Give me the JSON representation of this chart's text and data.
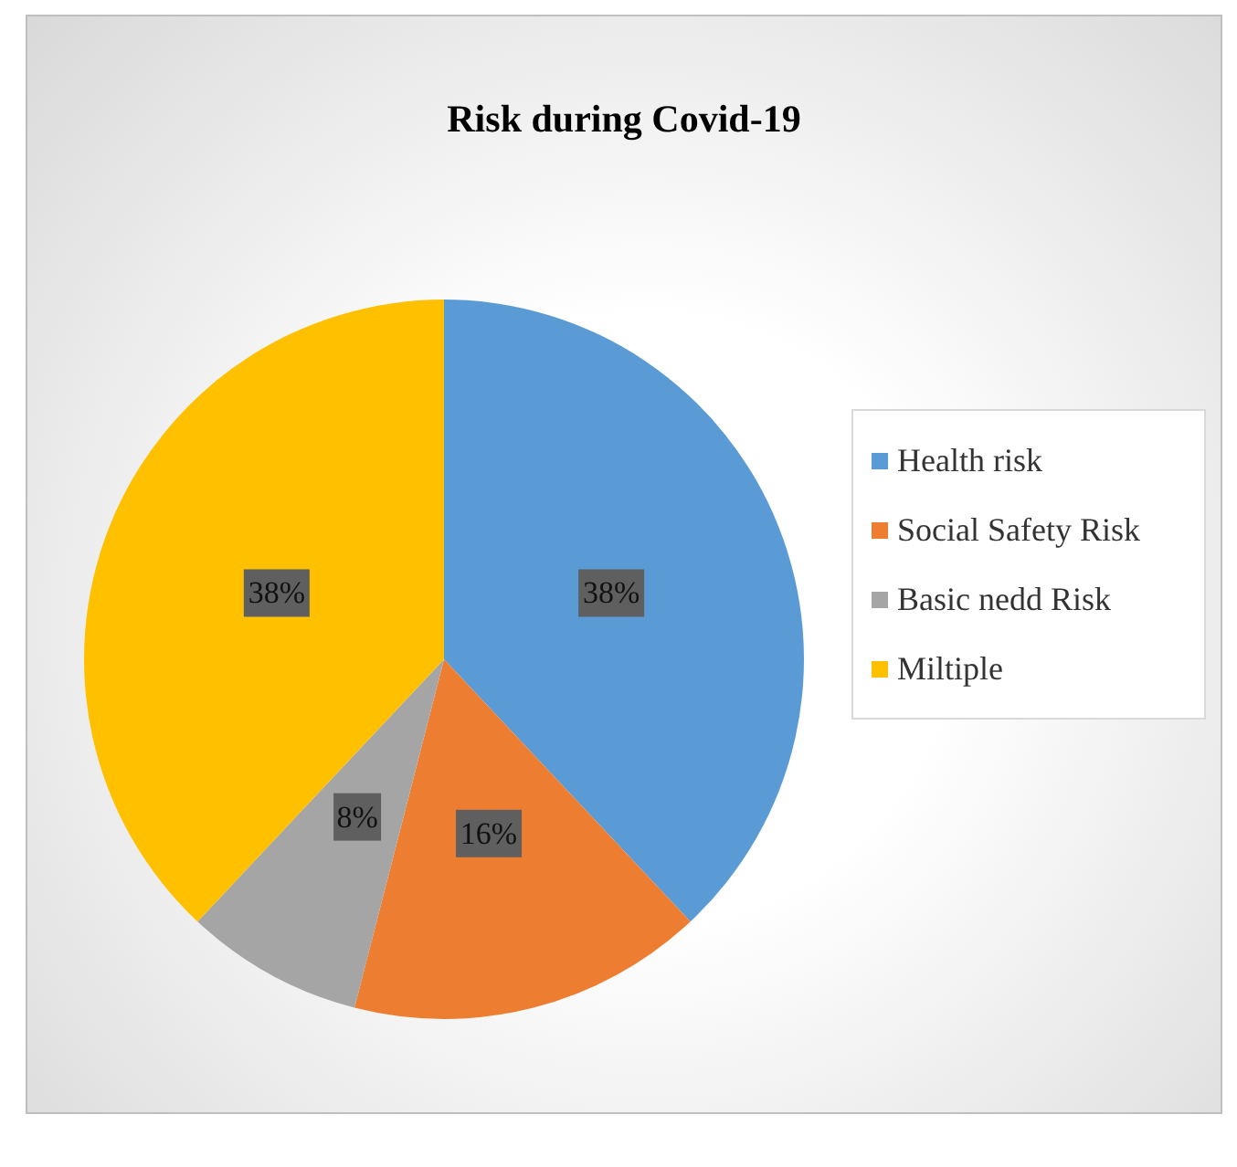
{
  "chart_data": {
    "type": "pie",
    "title": "Risk during Covid-19",
    "categories": [
      "Health risk",
      "Social Safety Risk",
      "Basic nedd Risk",
      "Miltiple"
    ],
    "values": [
      38,
      16,
      8,
      38
    ],
    "colors": [
      "#5b9bd5",
      "#ed7d31",
      "#a5a5a5",
      "#ffc000"
    ],
    "value_labels": [
      "38%",
      "16%",
      "8%",
      "38%"
    ],
    "legend": "right"
  }
}
